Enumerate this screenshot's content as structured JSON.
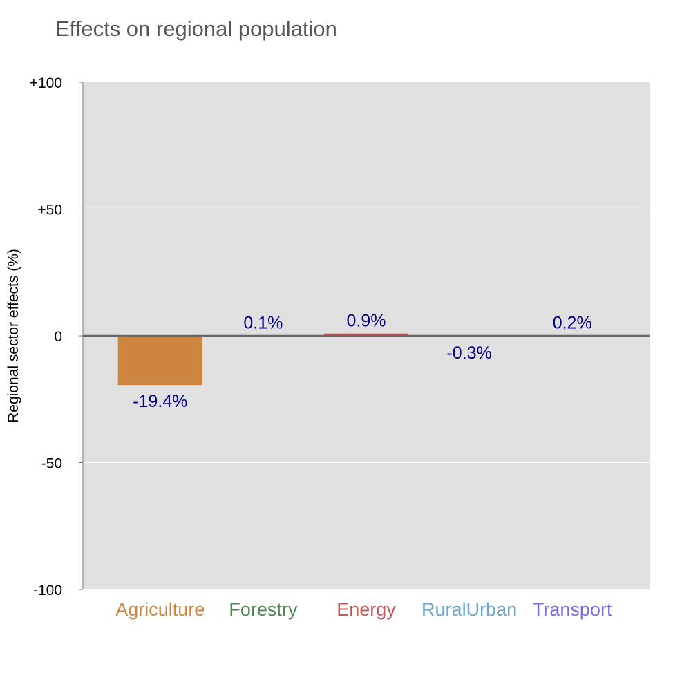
{
  "chart_data": {
    "type": "bar",
    "title": "Effects on regional population",
    "ylabel": "Regional sector effects (%)",
    "xlabel": "",
    "ylim": [
      -100,
      100
    ],
    "yticks": [
      100,
      50,
      0,
      -50,
      -100
    ],
    "ytick_labels": [
      "+100",
      "+50",
      "0",
      "-50",
      "-100"
    ],
    "grid": true,
    "categories": [
      "Agriculture",
      "Forestry",
      "Energy",
      "RuralUrban",
      "Transport"
    ],
    "values": [
      -19.4,
      0.1,
      0.9,
      -0.3,
      0.2
    ],
    "value_labels": [
      "-19.4%",
      "0.1%",
      "0.9%",
      "-0.3%",
      "0.2%"
    ],
    "colors": [
      "#cd853f",
      "#4e8a4e",
      "#cd5555",
      "#6ca6cd",
      "#7b68ee"
    ],
    "label_color": "#00008b",
    "background_color": "#e0e0e0"
  }
}
